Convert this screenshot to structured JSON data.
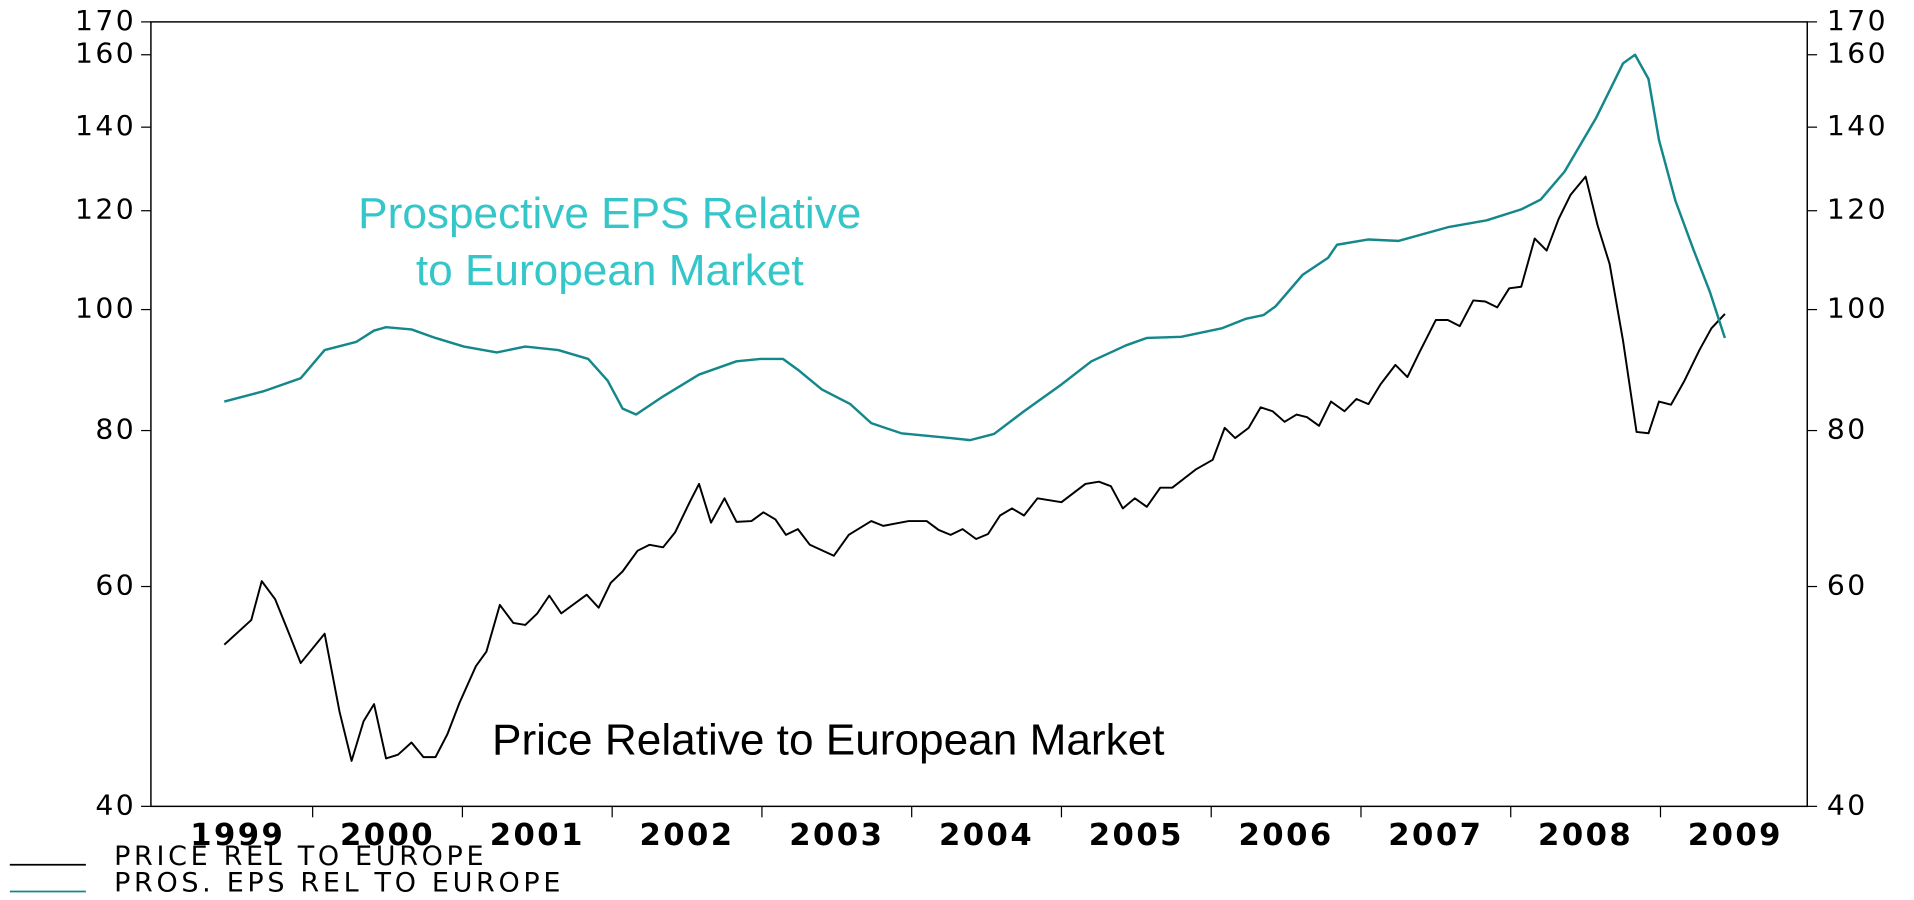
{
  "chart_data": {
    "type": "line",
    "log_scale": true,
    "annotations": [
      {
        "text": "Prospective EPS Relative",
        "color": "#35c6c9"
      },
      {
        "text": "to European Market",
        "color": "#35c6c9"
      },
      {
        "text": "Price Relative to European Market",
        "color": "#000000"
      }
    ],
    "series": [
      {
        "name": "PRICE REL TO EUROPE",
        "color": "#000000",
        "x": [
          1999.41,
          1999.59,
          1999.66,
          1999.75,
          1999.84,
          1999.92,
          2000.08,
          2000.18,
          2000.26,
          2000.34,
          2000.41,
          2000.49,
          2000.57,
          2000.66,
          2000.74,
          2000.82,
          2000.9,
          2000.98,
          2001.09,
          2001.16,
          2001.25,
          2001.34,
          2001.42,
          2001.5,
          2001.58,
          2001.66,
          2001.83,
          2001.91,
          2001.99,
          2002.07,
          2002.17,
          2002.25,
          2002.34,
          2002.42,
          2002.52,
          2002.58,
          2002.66,
          2002.75,
          2002.83,
          2002.93,
          2003.01,
          2003.09,
          2003.16,
          2003.24,
          2003.32,
          2003.48,
          2003.58,
          2003.73,
          2003.81,
          2003.98,
          2004.1,
          2004.18,
          2004.26,
          2004.34,
          2004.43,
          2004.51,
          2004.59,
          2004.67,
          2004.75,
          2004.84,
          2005.0,
          2005.16,
          2005.25,
          2005.33,
          2005.41,
          2005.49,
          2005.57,
          2005.66,
          2005.74,
          2005.9,
          2006.01,
          2006.09,
          2006.16,
          2006.25,
          2006.33,
          2006.41,
          2006.49,
          2006.57,
          2006.64,
          2006.72,
          2006.8,
          2006.89,
          2006.97,
          2007.05,
          2007.13,
          2007.23,
          2007.31,
          2007.39,
          2007.5,
          2007.58,
          2007.66,
          2007.75,
          2007.83,
          2007.91,
          2007.99,
          2008.07,
          2008.16,
          2008.24,
          2008.32,
          2008.4,
          2008.5,
          2008.58,
          2008.66,
          2008.75,
          2008.84,
          2008.92,
          2008.99,
          2009.07,
          2009.16,
          2009.26,
          2009.34,
          2009.43
        ],
        "values": [
          53.9,
          56.4,
          60.6,
          58.6,
          55.1,
          52.1,
          55.0,
          47.6,
          43.5,
          46.8,
          48.3,
          43.7,
          44.0,
          45.0,
          43.8,
          43.8,
          45.7,
          48.4,
          51.8,
          53.2,
          58.0,
          56.1,
          55.9,
          57.1,
          59.0,
          57.1,
          59.1,
          57.7,
          60.4,
          61.7,
          64.1,
          64.8,
          64.5,
          66.3,
          70.2,
          72.5,
          67.5,
          70.6,
          67.6,
          67.7,
          68.8,
          67.9,
          66.0,
          66.7,
          64.8,
          63.5,
          66.0,
          67.7,
          67.1,
          67.7,
          67.7,
          66.6,
          66.0,
          66.7,
          65.5,
          66.1,
          68.4,
          69.3,
          68.4,
          70.6,
          70.1,
          72.5,
          72.8,
          72.2,
          69.3,
          70.6,
          69.5,
          72.0,
          72.0,
          74.5,
          75.8,
          80.4,
          78.9,
          80.4,
          83.5,
          82.9,
          81.3,
          82.4,
          82.0,
          80.7,
          84.4,
          82.9,
          84.8,
          84.0,
          87.1,
          90.3,
          88.3,
          92.4,
          98.1,
          98.1,
          97.0,
          101.7,
          101.5,
          100.4,
          104.0,
          104.3,
          114.0,
          111.5,
          118.2,
          123.6,
          127.8,
          116.8,
          108.8,
          94.4,
          79.8,
          79.6,
          84.4,
          83.9,
          87.7,
          92.8,
          96.6,
          99.2
        ]
      },
      {
        "name": "PROS. EPS REL TO EUROPE",
        "color": "#13878a",
        "x": [
          1999.41,
          1999.67,
          1999.92,
          2000.08,
          2000.29,
          2000.41,
          2000.49,
          2000.66,
          2000.82,
          2001.01,
          2001.23,
          2001.42,
          2001.64,
          2001.84,
          2001.97,
          2002.07,
          2002.16,
          2002.34,
          2002.58,
          2002.83,
          2002.99,
          2003.14,
          2003.24,
          2003.4,
          2003.59,
          2003.73,
          2003.93,
          2004.26,
          2004.39,
          2004.55,
          2004.75,
          2005.0,
          2005.2,
          2005.43,
          2005.57,
          2005.8,
          2006.07,
          2006.23,
          2006.35,
          2006.43,
          2006.61,
          2006.78,
          2006.84,
          2007.05,
          2007.25,
          2007.58,
          2007.84,
          2008.07,
          2008.2,
          2008.36,
          2008.57,
          2008.75,
          2008.83,
          2008.92,
          2008.99,
          2009.1,
          2009.22,
          2009.33,
          2009.43
        ],
        "values": [
          84.4,
          86.0,
          88.1,
          92.8,
          94.2,
          96.2,
          96.8,
          96.4,
          94.9,
          93.4,
          92.4,
          93.4,
          92.8,
          91.3,
          87.7,
          83.3,
          82.4,
          85.2,
          88.7,
          90.9,
          91.3,
          91.3,
          89.5,
          86.3,
          84.0,
          81.1,
          79.6,
          78.9,
          78.6,
          79.5,
          82.9,
          87.1,
          90.9,
          93.6,
          94.9,
          95.1,
          96.6,
          98.3,
          99.0,
          100.6,
          106.6,
          110.0,
          112.7,
          113.8,
          113.5,
          116.4,
          117.9,
          120.3,
          122.5,
          129.0,
          142.4,
          157.5,
          160.0,
          153.0,
          136.7,
          122.2,
          111.7,
          103.3,
          94.9
        ]
      }
    ],
    "xlim": [
      1998.92,
      2009.98
    ],
    "xticks": [
      {
        "value": 1999.5,
        "label": "1999"
      },
      {
        "value": 2000.5,
        "label": "2000"
      },
      {
        "value": 2001.5,
        "label": "2001"
      },
      {
        "value": 2002.5,
        "label": "2002"
      },
      {
        "value": 2003.5,
        "label": "2003"
      },
      {
        "value": 2004.5,
        "label": "2004"
      },
      {
        "value": 2005.5,
        "label": "2005"
      },
      {
        "value": 2006.5,
        "label": "2006"
      },
      {
        "value": 2007.5,
        "label": "2007"
      },
      {
        "value": 2008.5,
        "label": "2008"
      },
      {
        "value": 2009.5,
        "label": "2009"
      }
    ],
    "xminor_ticks": [
      2000,
      2001,
      2002,
      2003,
      2004,
      2005,
      2006,
      2007,
      2008,
      2009
    ],
    "ylim": [
      40,
      170
    ],
    "yticks": [
      40,
      60,
      80,
      100,
      120,
      140,
      160,
      170
    ],
    "y2lim": [
      40,
      170
    ],
    "y2ticks": [
      40,
      60,
      80,
      100,
      120,
      140,
      160,
      170
    ],
    "grid": false,
    "legend": "bottom-left"
  }
}
